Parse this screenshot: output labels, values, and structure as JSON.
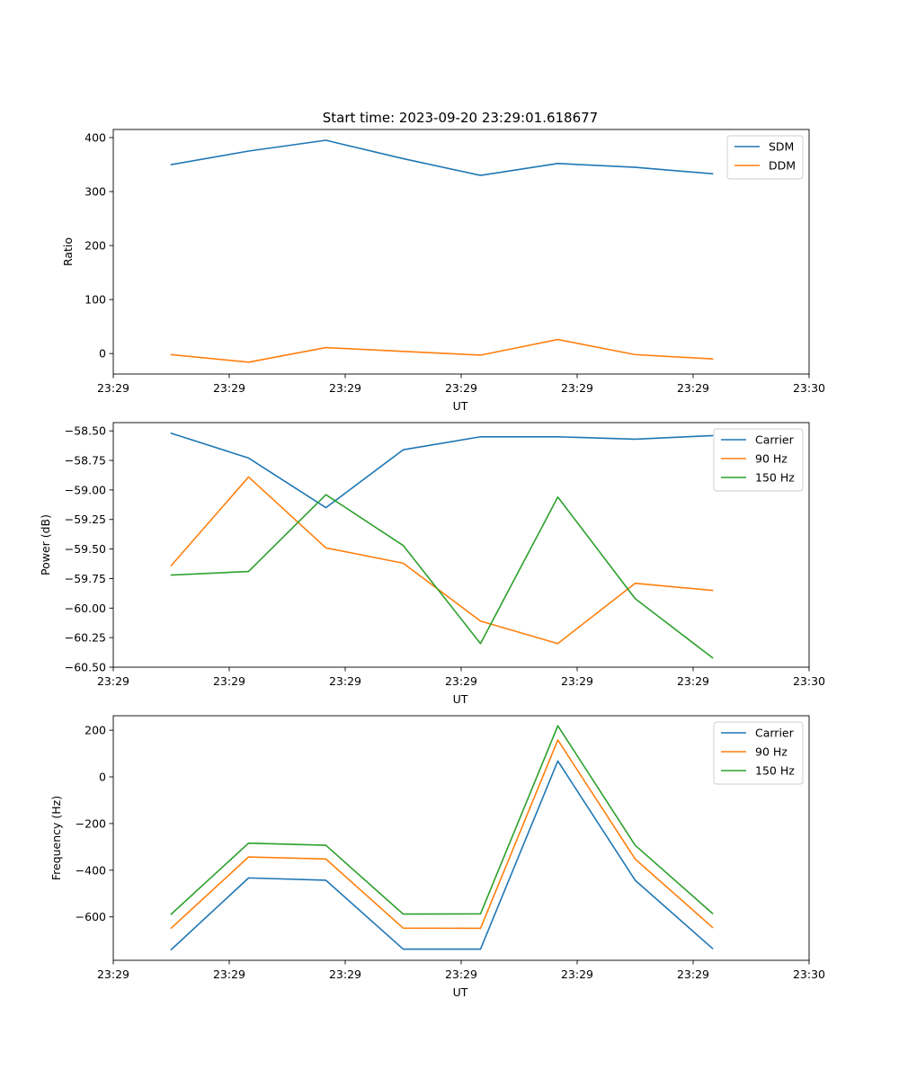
{
  "figure_title": "Start time: 2023-09-20 23:29:01.618677",
  "colors": {
    "blue": "#1f77b4",
    "orange": "#ff7f0e",
    "green": "#2ca02c"
  },
  "chart_data": [
    {
      "type": "line",
      "title": "Start time: 2023-09-20 23:29:01.618677",
      "xlabel": "UT",
      "ylabel": "Ratio",
      "x": [
        0,
        1,
        2,
        3,
        4,
        5,
        6,
        7
      ],
      "xlim": [
        -0.75,
        8.25
      ],
      "x_ticks": [
        -0.75,
        0.75,
        2.25,
        3.75,
        5.25,
        6.75,
        8.25
      ],
      "x_tick_labels": [
        "23:29",
        "23:29",
        "23:29",
        "23:29",
        "23:29",
        "23:29",
        "23:30"
      ],
      "ylim": [
        -38,
        415
      ],
      "y_ticks": [
        0,
        100,
        200,
        300,
        400
      ],
      "y_tick_labels": [
        "0",
        "100",
        "200",
        "300",
        "400"
      ],
      "legend_position": "top-right",
      "series": [
        {
          "name": "SDM",
          "color": "#1f77b4",
          "values": [
            350,
            375,
            395,
            361,
            330,
            352,
            345,
            333
          ]
        },
        {
          "name": "DDM",
          "color": "#ff7f0e",
          "values": [
            -2,
            -16,
            11,
            4,
            -3,
            26,
            -2,
            -10
          ]
        }
      ]
    },
    {
      "type": "line",
      "xlabel": "UT",
      "ylabel": "Power (dB)",
      "x": [
        0,
        1,
        2,
        3,
        4,
        5,
        6,
        7
      ],
      "xlim": [
        -0.75,
        8.25
      ],
      "x_ticks": [
        -0.75,
        0.75,
        2.25,
        3.75,
        5.25,
        6.75,
        8.25
      ],
      "x_tick_labels": [
        "23:29",
        "23:29",
        "23:29",
        "23:29",
        "23:29",
        "23:29",
        "23:30"
      ],
      "ylim": [
        -60.5,
        -58.43
      ],
      "y_ticks": [
        -58.5,
        -58.75,
        -59.0,
        -59.25,
        -59.5,
        -59.75,
        -60.0,
        -60.25,
        -60.5
      ],
      "y_tick_labels": [
        "−58.50",
        "−58.75",
        "−59.00",
        "−59.25",
        "−59.50",
        "−59.75",
        "−60.00",
        "−60.25",
        "−60.50"
      ],
      "legend_position": "top-right",
      "series": [
        {
          "name": "Carrier",
          "color": "#1f77b4",
          "values": [
            -58.52,
            -58.73,
            -59.15,
            -58.66,
            -58.55,
            -58.55,
            -58.57,
            -58.54
          ]
        },
        {
          "name": "90 Hz",
          "color": "#ff7f0e",
          "values": [
            -59.64,
            -58.89,
            -59.49,
            -59.62,
            -60.11,
            -60.3,
            -59.79,
            -59.85
          ]
        },
        {
          "name": "150 Hz",
          "color": "#2ca02c",
          "values": [
            -59.72,
            -59.69,
            -59.04,
            -59.47,
            -60.3,
            -59.06,
            -59.92,
            -60.42
          ]
        }
      ]
    },
    {
      "type": "line",
      "xlabel": "UT",
      "ylabel": "Frequency (Hz)",
      "x": [
        0,
        1,
        2,
        3,
        4,
        5,
        6,
        7
      ],
      "xlim": [
        -0.75,
        8.25
      ],
      "x_ticks": [
        -0.75,
        0.75,
        2.25,
        3.75,
        5.25,
        6.75,
        8.25
      ],
      "x_tick_labels": [
        "23:29",
        "23:29",
        "23:29",
        "23:29",
        "23:29",
        "23:29",
        "23:30"
      ],
      "ylim": [
        -786,
        262
      ],
      "y_ticks": [
        200,
        0,
        -200,
        -400,
        -600
      ],
      "y_tick_labels": [
        "200",
        "0",
        "−200",
        "−400",
        "−600"
      ],
      "legend_position": "top-right",
      "series": [
        {
          "name": "Carrier",
          "color": "#1f77b4",
          "values": [
            -740,
            -433,
            -443,
            -738,
            -738,
            68,
            -443,
            -735
          ]
        },
        {
          "name": "90 Hz",
          "color": "#ff7f0e",
          "values": [
            -648,
            -343,
            -352,
            -648,
            -649,
            158,
            -352,
            -645
          ]
        },
        {
          "name": "150 Hz",
          "color": "#2ca02c",
          "values": [
            -588,
            -284,
            -293,
            -588,
            -587,
            219,
            -293,
            -585
          ]
        }
      ]
    }
  ]
}
